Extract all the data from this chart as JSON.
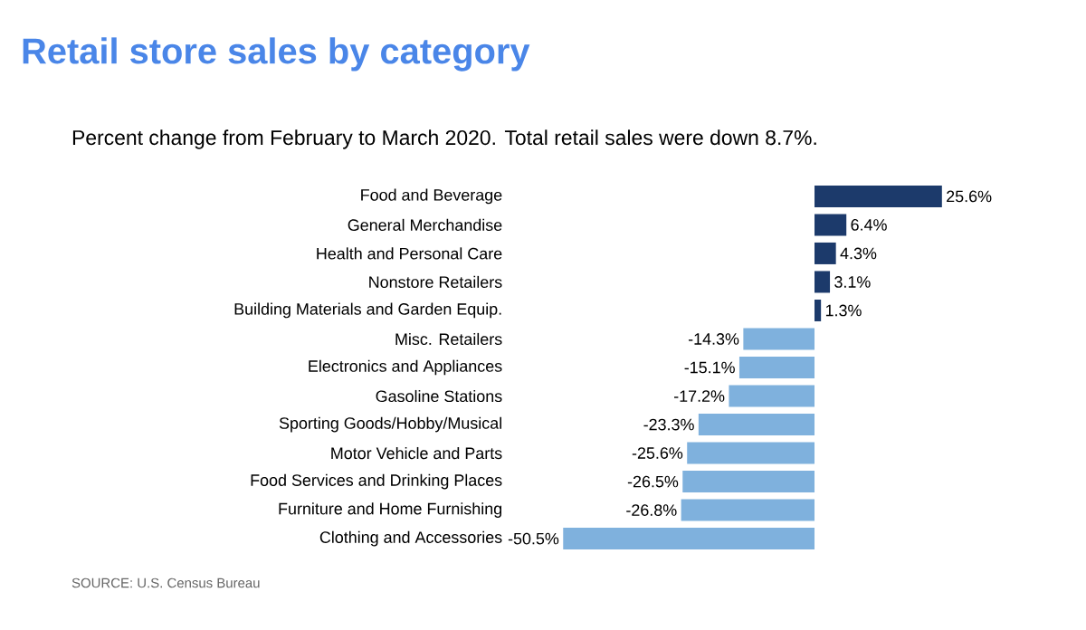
{
  "chart_data": {
    "type": "bar",
    "orientation": "horizontal",
    "title": "Retail store sales by category",
    "subtitle": "Percent change from February to March 2020. Total retail sales were down 8.7%.",
    "categories": [
      "Food and Beverage",
      "General Merchandise",
      "Health and Personal Care",
      "Nonstore Retailers",
      "Building Materials and Garden Equip.",
      "Misc. Retailers",
      "Electronics and Appliances",
      "Gasoline Stations",
      "Sporting Goods/Hobby/Musical",
      "Motor Vehicle and Parts",
      "Food Services and Drinking Places",
      "Furniture and Home Furnishing",
      "Clothing and Accessories"
    ],
    "values": [
      25.6,
      6.4,
      4.3,
      3.1,
      1.3,
      -14.3,
      -15.1,
      -17.2,
      -23.3,
      -25.6,
      -26.5,
      -26.8,
      -50.5
    ],
    "value_labels": [
      "25.6%",
      "6.4%",
      "4.3%",
      "3.1%",
      "1.3%",
      "-14.3%",
      "-15.1%",
      "-17.2%",
      "-23.3%",
      "-25.6%",
      "-26.5%",
      "-26.8%",
      "-50.5%"
    ],
    "colors": [
      "#1c3a6b",
      "#1c3a6b",
      "#1c3a6b",
      "#1c3a6b",
      "#1c3a6b",
      "#7fb1dd",
      "#7fb1dd",
      "#7fb1dd",
      "#7fb1dd",
      "#7fb1dd",
      "#7fb1dd",
      "#7fb1dd",
      "#7fb1dd"
    ],
    "annotations": [
      "SOURCE: U.S. Census Bureau"
    ]
  }
}
